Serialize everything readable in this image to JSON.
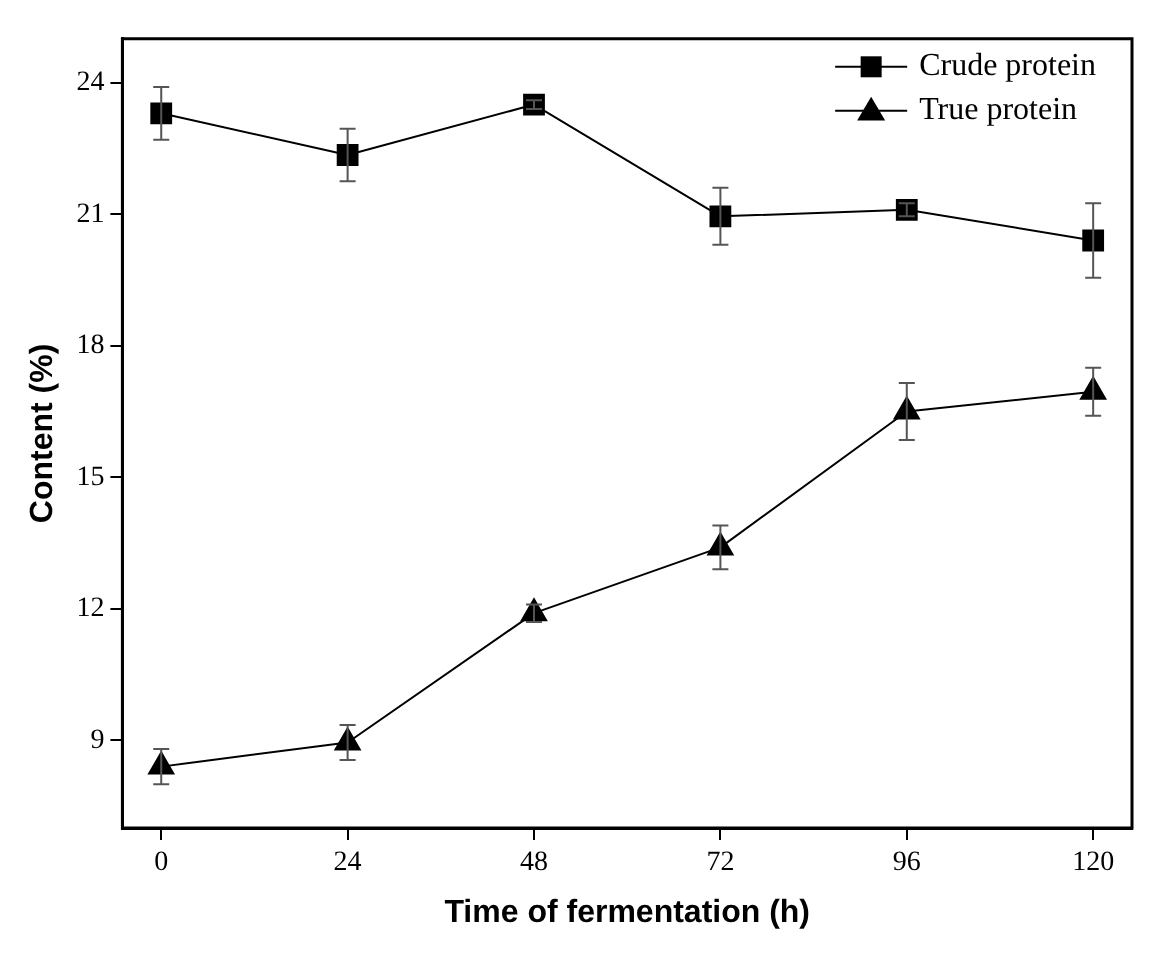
{
  "chart_data": {
    "type": "line",
    "xlabel": "Time of fermentation (h)",
    "ylabel": "Content (%)",
    "x": [
      0,
      24,
      48,
      72,
      96,
      120
    ],
    "series": [
      {
        "name": "Crude protein",
        "color": "#000000",
        "marker": "square",
        "values": [
          23.3,
          22.35,
          23.5,
          20.95,
          21.1,
          20.4
        ],
        "errors": [
          0.6,
          0.6,
          0.1,
          0.65,
          0.15,
          0.85
        ]
      },
      {
        "name": "True protein",
        "color": "#000000",
        "marker": "triangle",
        "values": [
          8.4,
          8.95,
          11.9,
          13.4,
          16.5,
          16.95
        ],
        "errors": [
          0.4,
          0.4,
          0.2,
          0.5,
          0.65,
          0.55
        ]
      }
    ],
    "xlim": [
      -5,
      125
    ],
    "xticks": [
      0,
      24,
      48,
      72,
      96,
      120
    ],
    "ylim": [
      7,
      25
    ],
    "yticks": [
      9,
      12,
      15,
      18,
      21,
      24
    ],
    "grid": false,
    "legend": "top right",
    "line_style": "solid"
  }
}
